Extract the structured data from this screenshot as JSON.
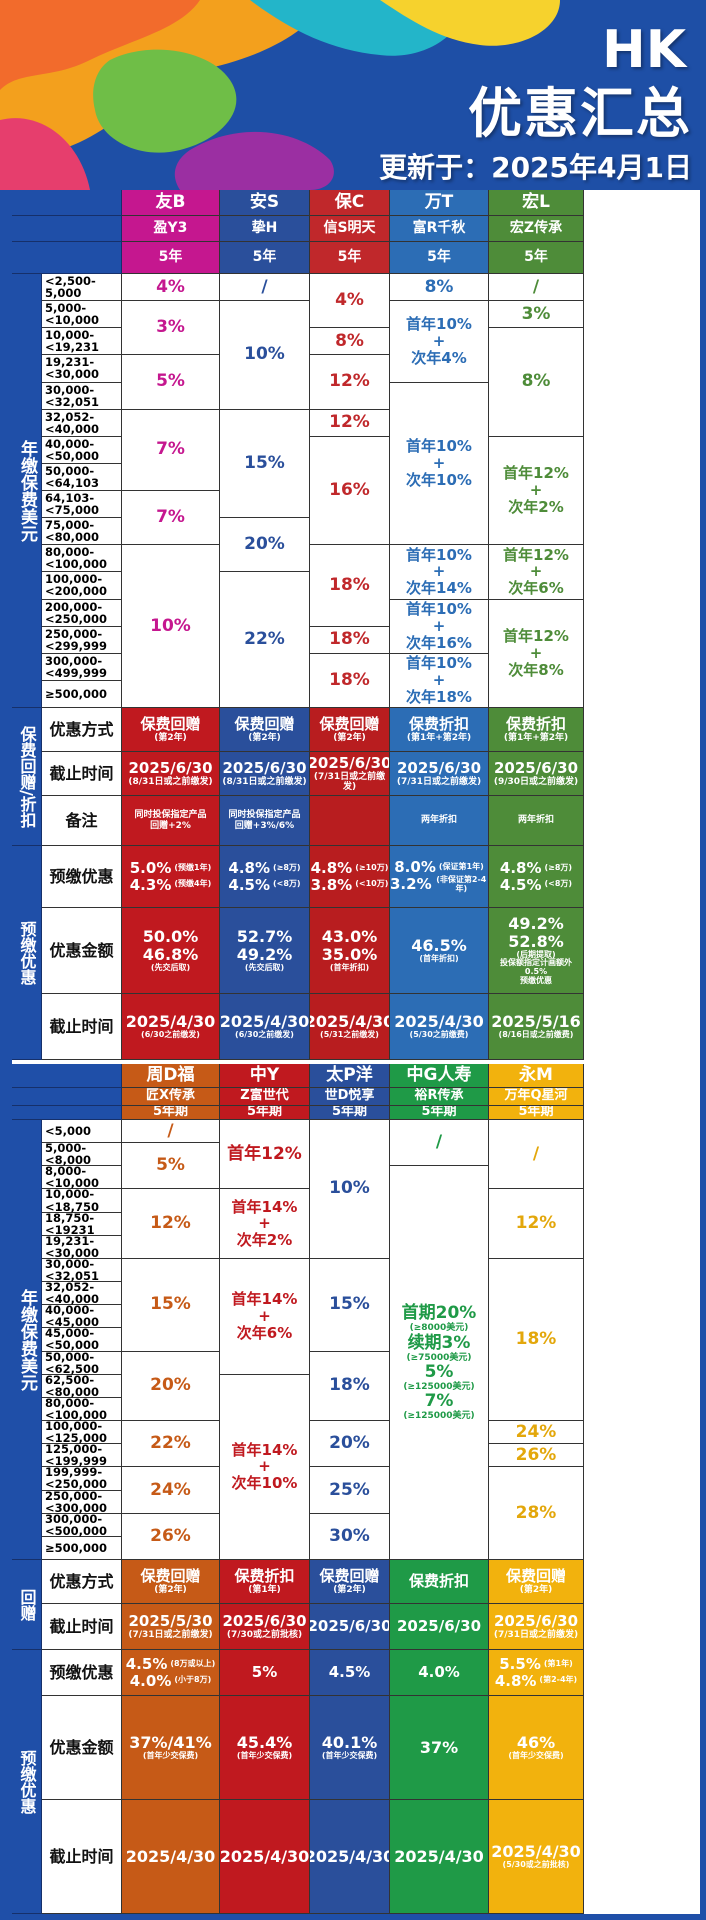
{
  "header": {
    "brand": "HK",
    "title": "优惠汇总",
    "updated": "更新于：2025年4月1日"
  },
  "t1": {
    "brands": [
      "友B",
      "安S",
      "保C",
      "万T",
      "宏L"
    ],
    "products": [
      "盈Y3",
      "挚H",
      "信S明天",
      "富R千秋",
      "宏Z传承"
    ],
    "terms": [
      "5年",
      "5年",
      "5年",
      "5年",
      "5年"
    ],
    "colors": [
      "#c5178f",
      "#2a4f9b",
      "#c0282b",
      "#2c6db5",
      "#4e8c39"
    ],
    "side_premium": "年缴保费美元",
    "ranges": [
      "<2,500-5,000",
      "5,000-<10,000",
      "10,000-<19,231",
      "19,231-<30,000",
      "30,000-<32,051",
      "32,052-<40,000",
      "40,000-<50,000",
      "50,000-<64,103",
      "64,103-<75,000",
      "75,000-<80,000",
      "80,000-<100,000",
      "100,000-\n<200,000",
      "200,000-\n<250,000",
      "250,000-\n<299,999",
      "300,000-\n<499,999",
      "≥500,000"
    ],
    "cells": [
      [
        "4%",
        "3%",
        "5%",
        "7%",
        "7%",
        "10%"
      ],
      [
        "/",
        "10%",
        "15%",
        "20%",
        "22%"
      ],
      [
        "4%",
        "8%",
        "12%",
        "12%",
        "16%",
        "18%",
        "18%",
        "18%"
      ],
      [
        "8%",
        "首年10%\n+\n次年4%",
        "首年10%\n+\n次年10%",
        "首年10%\n+\n次年14%",
        "首年10%\n+\n次年16%",
        "首年10%\n+\n次年18%"
      ],
      [
        "/",
        "3%",
        "8%",
        "首年12%\n+\n次年2%",
        "首年12%\n+\n次年6%",
        "首年12%\n+\n次年8%"
      ]
    ],
    "side_gift": "保费回赠/折扣",
    "lbl_method": "优惠方式",
    "lbl_deadline": "截止时间",
    "lbl_note": "备注",
    "method": [
      [
        "保费回赠",
        "(第2年)"
      ],
      [
        "保费回赠",
        "(第2年)"
      ],
      [
        "保费回赠",
        "(第2年)"
      ],
      [
        "保费折扣",
        "(第1年+第2年)"
      ],
      [
        "保费折扣",
        "(第1年+第2年)"
      ]
    ],
    "deadline": [
      [
        "2025/6/30",
        "(8/31日或之前缴发)"
      ],
      [
        "2025/6/30",
        "(8/31日或之前缴发)"
      ],
      [
        "2025/6/30",
        "(7/31日或之前缴发)"
      ],
      [
        "2025/6/30",
        "(7/31日或之前缴发)"
      ],
      [
        "2025/6/30",
        "(9/30日或之前缴发)"
      ]
    ],
    "note": [
      "同时投保指定产品\n回赠+2%",
      "同时投保指定产品\n回赠+3%/6%",
      "",
      "两年折扣",
      "两年折扣"
    ],
    "side_prepay": "预缴优惠",
    "lbl_prepay": "预缴优惠",
    "lbl_amount": "优惠金额",
    "lbl_pdl": "截止时间",
    "prepay": [
      [
        "5.0%",
        "(预缴1年)",
        "4.3%",
        "(预缴4年)"
      ],
      [
        "4.8%",
        "(≥8万)",
        "4.5%",
        "(<8万)"
      ],
      [
        "4.8%",
        "(≥10万)",
        "3.8%",
        "(<10万)"
      ],
      [
        "8.0%",
        "(保证第1年)",
        "3.2%",
        "(非保证第2-4年)"
      ],
      [
        "4.8%",
        "(≥8万)",
        "4.5%",
        "(<8万)"
      ]
    ],
    "amount": [
      [
        "50.0%",
        "46.8%",
        "(先交后取)"
      ],
      [
        "52.7%",
        "49.2%",
        "(先交后取)"
      ],
      [
        "43.0%",
        "35.0%",
        "(首年折扣)"
      ],
      [
        "46.5%",
        "",
        "(首年折扣)"
      ],
      [
        "49.2%",
        "52.8%",
        "(后期提取)\n投保额指定计画额外0.5%\n预缴优惠"
      ]
    ],
    "pdl": [
      [
        "2025/4/30",
        "(6/30之前缴发)"
      ],
      [
        "2025/4/30",
        "(6/30之前缴发)"
      ],
      [
        "2025/4/30",
        "(5/31之前缴发)"
      ],
      [
        "2025/4/30",
        "(5/30之前缴费)"
      ],
      [
        "2025/5/16",
        "(8/16日或之前缴费)"
      ]
    ]
  },
  "t2": {
    "brands": [
      "周D福",
      "中Y",
      "太P洋",
      "中G人寿",
      "永M"
    ],
    "products": [
      "匠X传承",
      "Z富世代",
      "世D悦享",
      "裕R传承",
      "万年Q星河"
    ],
    "terms": [
      "5年期",
      "5年期",
      "5年期",
      "5年期",
      "5年期"
    ],
    "colors": [
      "#c65a17",
      "#c0191f",
      "#2a4f9b",
      "#1f9a47",
      "#f2b20d"
    ],
    "side_premium": "年缴保费美元",
    "ranges": [
      "<5,000",
      "5,000-<8,000",
      "8,000-<10,000",
      "10,000-<18,750",
      "18,750-<19231",
      "19,231-<30,000",
      "30,000-<32,051",
      "32,052-<40,000",
      "40,000-<45,000",
      "45,000-<50,000",
      "50,000-<62,500",
      "62,500-<80,000",
      "80,000-<100,000",
      "100,000-<125,000",
      "125,000-<199,999",
      "199,999-<250,000",
      "250,000-<300,000",
      "300,000-<500,000",
      "≥500,000"
    ],
    "cells": [
      [
        "/",
        "5%",
        "12%",
        "15%",
        "20%",
        "22%",
        "24%",
        "26%"
      ],
      [
        "首年12%",
        "首年14%\n+\n次年2%",
        "首年14%\n+\n次年6%",
        "首年14%\n+\n次年10%"
      ],
      [
        "10%",
        "15%",
        "18%",
        "20%",
        "25%",
        "30%"
      ],
      [
        "/",
        "首期20%",
        "(≥8000美元)",
        "续期3%",
        "(≥75000美元)",
        "5%",
        "(≥125000美元)",
        "7%",
        "(≥125000美元)"
      ],
      [
        "/",
        "12%",
        "18%",
        "24%",
        "26%",
        "28%"
      ]
    ],
    "side_gift": "回赠",
    "lbl_method": "优惠方式",
    "lbl_deadline": "截止时间",
    "method": [
      [
        "保费回赠",
        "(第2年)"
      ],
      [
        "保费折扣",
        "(第1年)"
      ],
      [
        "保费回赠",
        "(第2年)"
      ],
      [
        "保费折扣",
        ""
      ],
      [
        "保费回赠",
        "(第2年)"
      ]
    ],
    "deadline": [
      [
        "2025/5/30",
        "(7/31日或之前缴发)"
      ],
      [
        "2025/6/30",
        "(7/30或之前批核)"
      ],
      [
        "2025/6/30",
        ""
      ],
      [
        "2025/6/30",
        ""
      ],
      [
        "2025/6/30",
        "(7/31日或之前缴发)"
      ]
    ],
    "side_prepay": "预缴优惠",
    "lbl_prepay": "预缴优惠",
    "lbl_amount": "优惠金额",
    "lbl_pdl": "截止时间",
    "prepay": [
      [
        "4.5%",
        "(8万或以上)",
        "4.0%",
        "(小于8万)"
      ],
      [
        "5%",
        "",
        "",
        ""
      ],
      [
        "4.5%",
        "",
        "",
        ""
      ],
      [
        "4.0%",
        "",
        "",
        ""
      ],
      [
        "5.5%",
        "(第1年)",
        "4.8%",
        "(第2-4年)"
      ]
    ],
    "amount": [
      [
        "37%/41%",
        "",
        "(首年少交保费)"
      ],
      [
        "45.4%",
        "",
        "(首年少交保费)"
      ],
      [
        "40.1%",
        "",
        "(首年少交保费)"
      ],
      [
        "37%",
        "",
        ""
      ],
      [
        "46%",
        "",
        "(首年少交保费)"
      ]
    ],
    "pdl": [
      [
        "2025/4/30",
        ""
      ],
      [
        "2025/4/30",
        ""
      ],
      [
        "2025/4/30",
        ""
      ],
      [
        "2025/4/30",
        ""
      ],
      [
        "2025/4/30",
        "(5/30或之前批核)"
      ]
    ]
  }
}
